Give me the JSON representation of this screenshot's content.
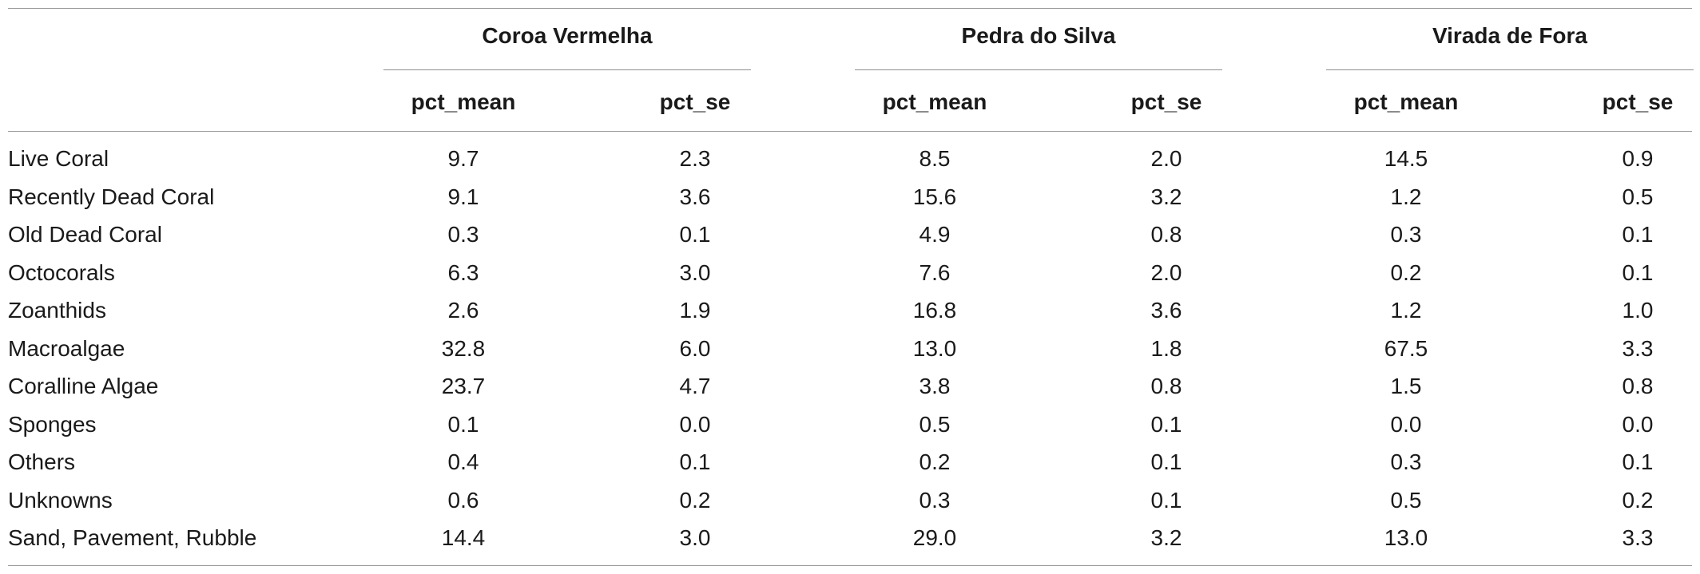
{
  "groups": [
    {
      "name": "Coroa Vermelha",
      "sub": [
        "pct_mean",
        "pct_se"
      ]
    },
    {
      "name": "Pedra do Silva",
      "sub": [
        "pct_mean",
        "pct_se"
      ]
    },
    {
      "name": "Virada de Fora",
      "sub": [
        "pct_mean",
        "pct_se"
      ]
    }
  ],
  "rows": [
    {
      "label": "Live Coral",
      "values": [
        "9.7",
        "2.3",
        "8.5",
        "2.0",
        "14.5",
        "0.9"
      ]
    },
    {
      "label": "Recently Dead Coral",
      "values": [
        "9.1",
        "3.6",
        "15.6",
        "3.2",
        "1.2",
        "0.5"
      ]
    },
    {
      "label": "Old Dead Coral",
      "values": [
        "0.3",
        "0.1",
        "4.9",
        "0.8",
        "0.3",
        "0.1"
      ]
    },
    {
      "label": "Octocorals",
      "values": [
        "6.3",
        "3.0",
        "7.6",
        "2.0",
        "0.2",
        "0.1"
      ]
    },
    {
      "label": "Zoanthids",
      "values": [
        "2.6",
        "1.9",
        "16.8",
        "3.6",
        "1.2",
        "1.0"
      ]
    },
    {
      "label": "Macroalgae",
      "values": [
        "32.8",
        "6.0",
        "13.0",
        "1.8",
        "67.5",
        "3.3"
      ]
    },
    {
      "label": "Coralline Algae",
      "values": [
        "23.7",
        "4.7",
        "3.8",
        "0.8",
        "1.5",
        "0.8"
      ]
    },
    {
      "label": "Sponges",
      "values": [
        "0.1",
        "0.0",
        "0.5",
        "0.1",
        "0.0",
        "0.0"
      ]
    },
    {
      "label": "Others",
      "values": [
        "0.4",
        "0.1",
        "0.2",
        "0.1",
        "0.3",
        "0.1"
      ]
    },
    {
      "label": "Unknowns",
      "values": [
        "0.6",
        "0.2",
        "0.3",
        "0.1",
        "0.5",
        "0.2"
      ]
    },
    {
      "label": "Sand, Pavement, Rubble",
      "values": [
        "14.4",
        "3.0",
        "29.0",
        "3.2",
        "13.0",
        "3.3"
      ]
    }
  ]
}
